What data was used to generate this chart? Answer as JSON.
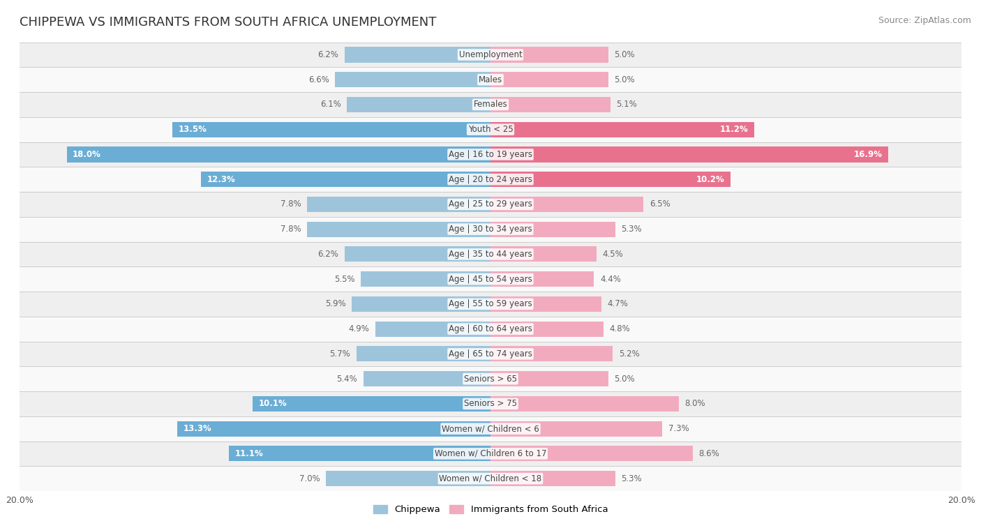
{
  "title": "CHIPPEWA VS IMMIGRANTS FROM SOUTH AFRICA UNEMPLOYMENT",
  "source": "Source: ZipAtlas.com",
  "categories": [
    "Unemployment",
    "Males",
    "Females",
    "Youth < 25",
    "Age | 16 to 19 years",
    "Age | 20 to 24 years",
    "Age | 25 to 29 years",
    "Age | 30 to 34 years",
    "Age | 35 to 44 years",
    "Age | 45 to 54 years",
    "Age | 55 to 59 years",
    "Age | 60 to 64 years",
    "Age | 65 to 74 years",
    "Seniors > 65",
    "Seniors > 75",
    "Women w/ Children < 6",
    "Women w/ Children 6 to 17",
    "Women w/ Children < 18"
  ],
  "chippewa": [
    6.2,
    6.6,
    6.1,
    13.5,
    18.0,
    12.3,
    7.8,
    7.8,
    6.2,
    5.5,
    5.9,
    4.9,
    5.7,
    5.4,
    10.1,
    13.3,
    11.1,
    7.0
  ],
  "immigrants": [
    5.0,
    5.0,
    5.1,
    11.2,
    16.9,
    10.2,
    6.5,
    5.3,
    4.5,
    4.4,
    4.7,
    4.8,
    5.2,
    5.0,
    8.0,
    7.3,
    8.6,
    5.3
  ],
  "chippewa_color": "#9ec4dc",
  "immigrants_color": "#f2abbe",
  "chippewa_highlight_color": "#6aadd5",
  "immigrants_highlight_color": "#e8728e",
  "background_row_light": "#efefef",
  "background_row_white": "#f9f9f9",
  "xlim": 20.0,
  "legend_label_chippewa": "Chippewa",
  "legend_label_immigrants": "Immigrants from South Africa",
  "title_fontsize": 13,
  "source_fontsize": 9,
  "label_fontsize": 8.5,
  "category_fontsize": 8.5,
  "chip_highlight_threshold": 10.0,
  "imm_highlight_threshold": 10.0
}
